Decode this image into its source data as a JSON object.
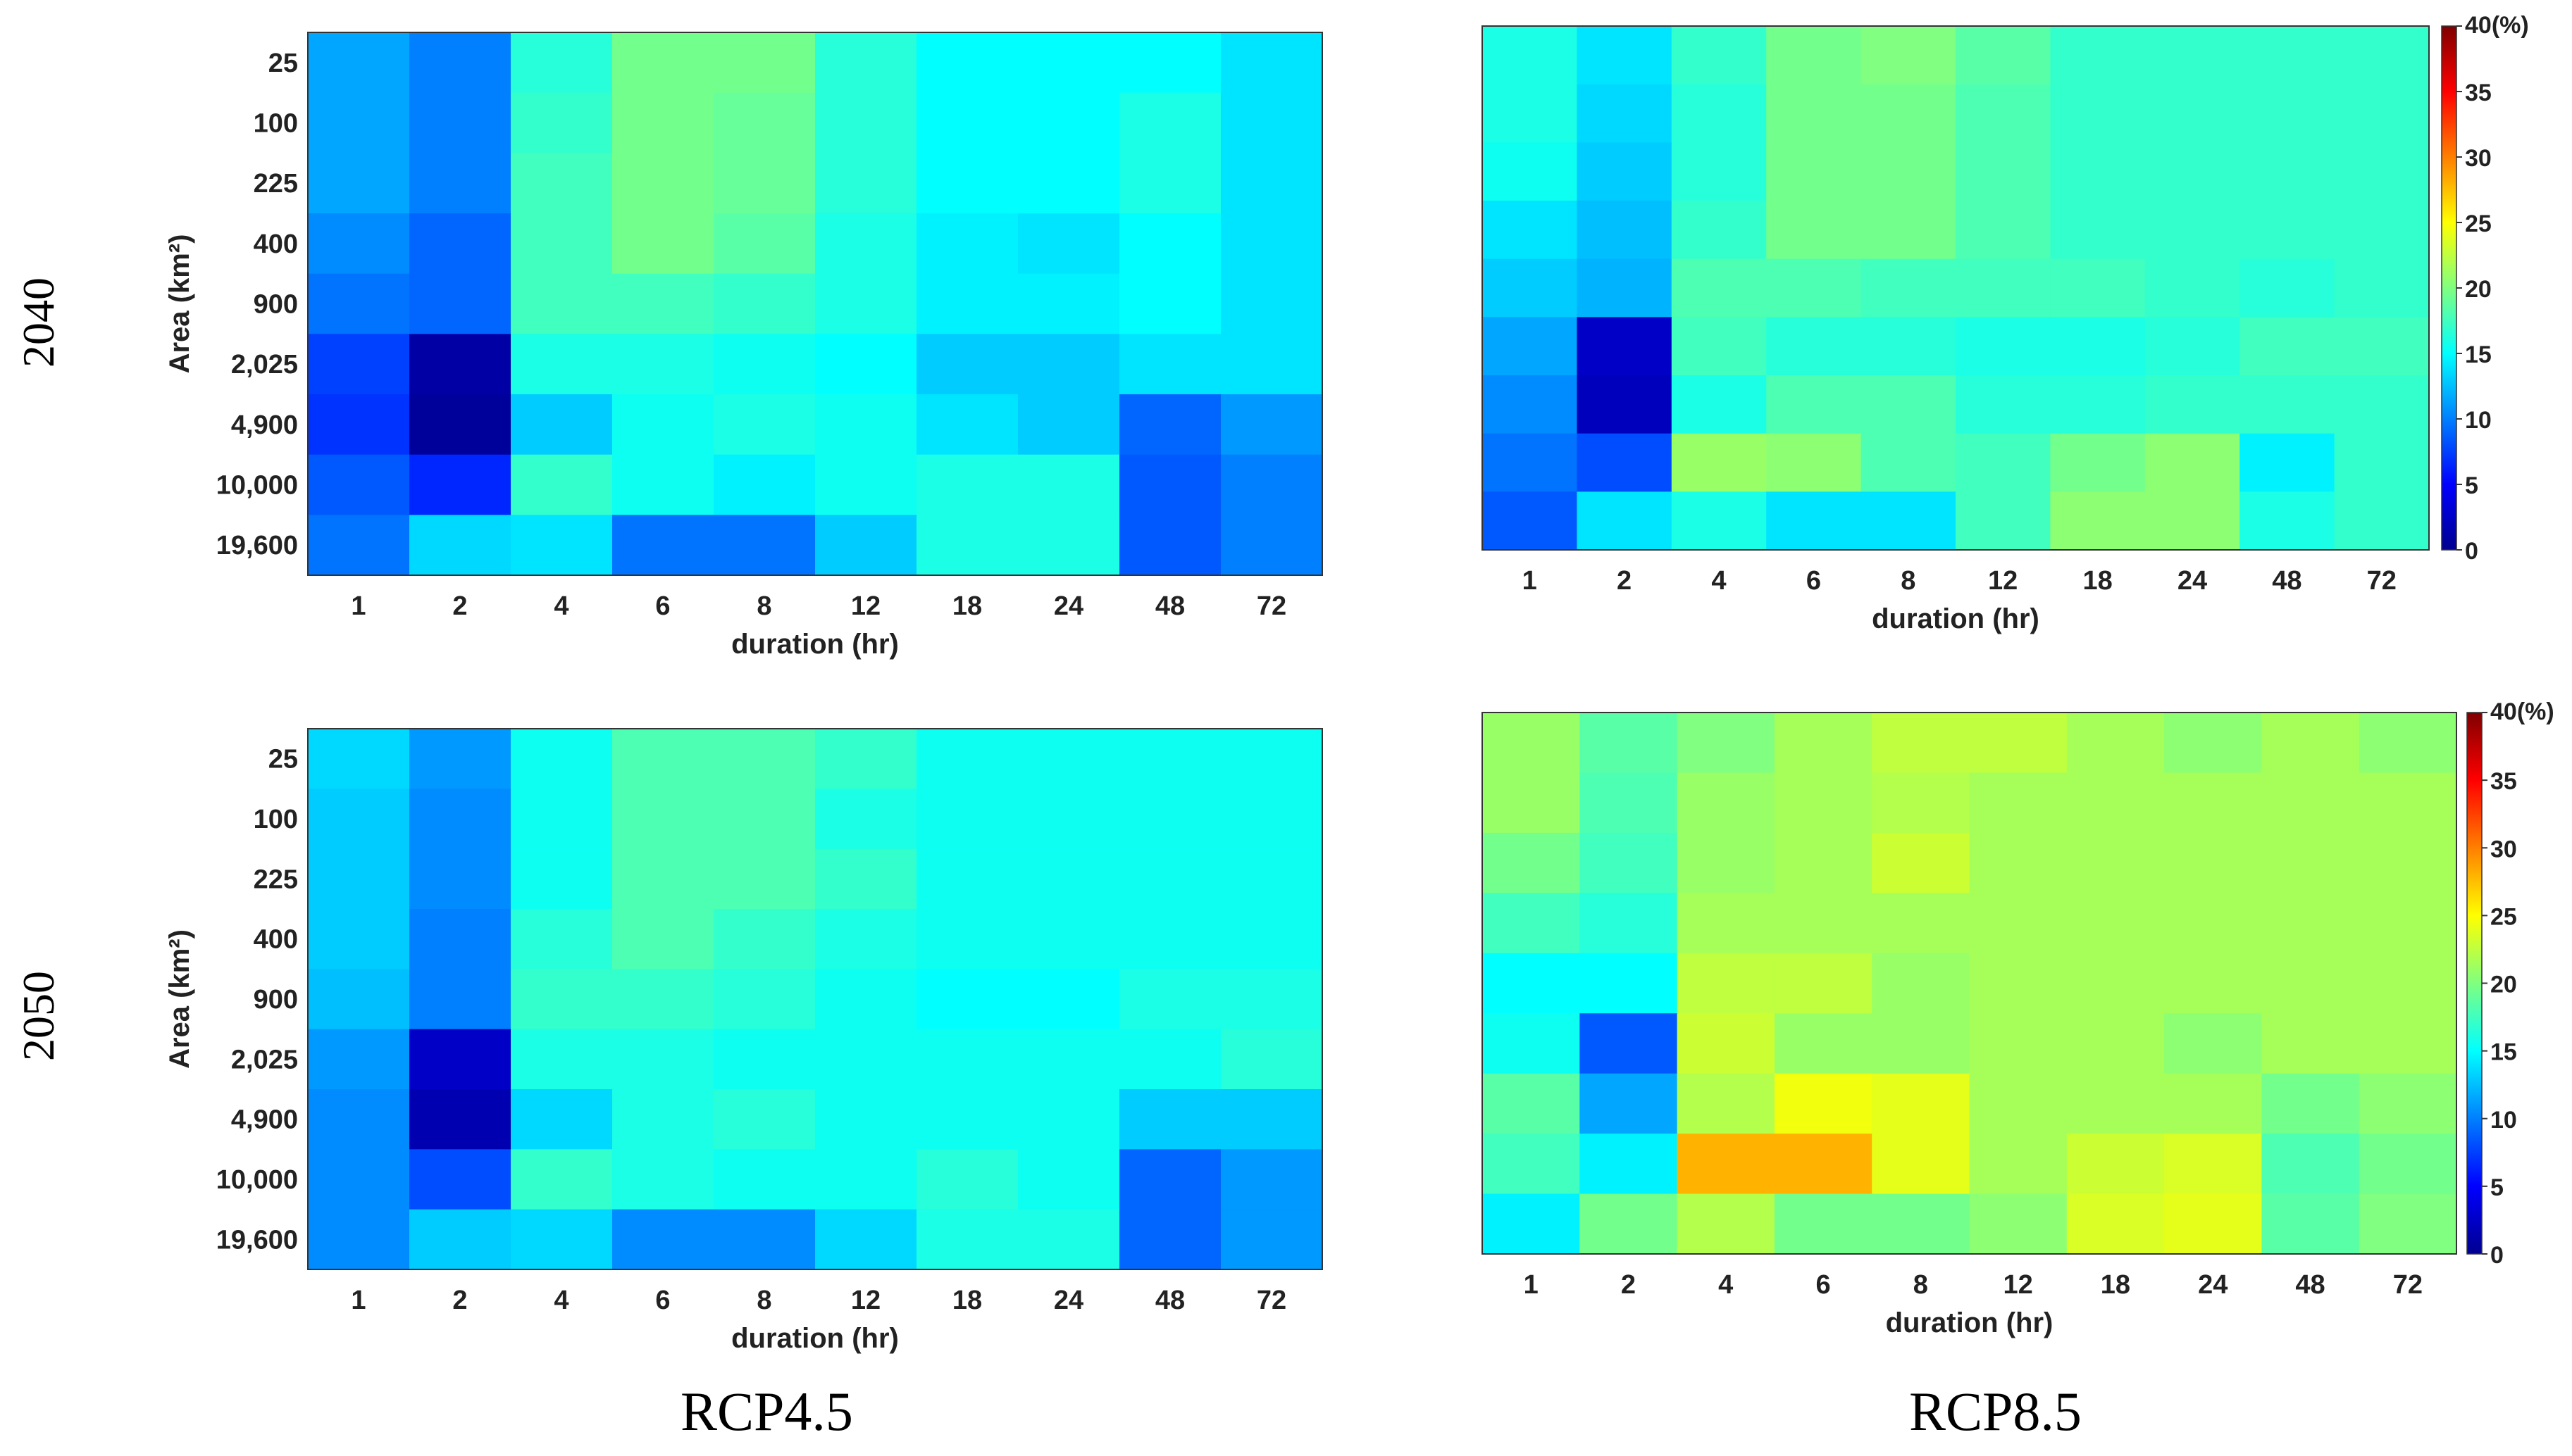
{
  "row_labels": [
    "2040",
    "2050"
  ],
  "column_labels": [
    "RCP4.5",
    "RCP8.5"
  ],
  "colormap": {
    "name": "jet",
    "range": [
      0,
      40
    ],
    "stops": [
      "#00008f",
      "#0000ff",
      "#00ffff",
      "#ffff00",
      "#ff0000",
      "#800000"
    ]
  },
  "chart_data": [
    {
      "type": "heatmap",
      "id": "rcp45-2040",
      "title": "",
      "xlabel": "duration (hr)",
      "ylabel": "Area (km²)",
      "x_categories": [
        "1",
        "2",
        "4",
        "6",
        "8",
        "12",
        "18",
        "24",
        "48",
        "72"
      ],
      "y_categories": [
        "25",
        "100",
        "225",
        "400",
        "900",
        "2,025",
        "4,900",
        "10,000",
        "19,600"
      ],
      "show_ytick_labels": true,
      "colorbar": null,
      "values": [
        [
          11.5,
          10,
          16.5,
          19.5,
          19.5,
          16.5,
          15,
          15,
          15,
          14
        ],
        [
          11.5,
          10,
          17,
          19.5,
          19,
          16.5,
          15,
          15,
          16,
          14
        ],
        [
          11.5,
          10,
          17.5,
          19.5,
          19,
          16.5,
          15,
          15,
          16,
          14
        ],
        [
          10.5,
          9,
          17.5,
          19.5,
          18.5,
          16,
          14.5,
          14,
          15,
          14
        ],
        [
          9.5,
          9,
          17.5,
          17.5,
          17,
          16,
          14.5,
          14.5,
          15,
          14
        ],
        [
          7.5,
          1,
          16,
          16,
          15.5,
          15,
          13,
          13,
          14,
          14
        ],
        [
          7,
          0.5,
          13,
          15.5,
          16,
          15.5,
          14,
          13,
          9,
          11
        ],
        [
          8.5,
          6.5,
          17,
          15.5,
          14.5,
          15.5,
          16,
          16,
          8.5,
          10
        ],
        [
          9.5,
          13.5,
          14,
          9.5,
          9.5,
          13,
          16,
          16,
          8.5,
          10
        ]
      ]
    },
    {
      "type": "heatmap",
      "id": "rcp85-2040",
      "title": "",
      "xlabel": "duration (hr)",
      "ylabel": "",
      "x_categories": [
        "1",
        "2",
        "4",
        "6",
        "8",
        "12",
        "18",
        "24",
        "48",
        "72"
      ],
      "y_categories": [
        "25",
        "100",
        "225",
        "400",
        "900",
        "2,025",
        "4,900",
        "10,000",
        "19,600"
      ],
      "show_ytick_labels": false,
      "colorbar": {
        "ticks": [
          "0",
          "5",
          "10",
          "15",
          "20",
          "25",
          "30",
          "35",
          "40"
        ],
        "top_label": "40(%)"
      },
      "values": [
        [
          16,
          14,
          17,
          19.5,
          20,
          18.5,
          17,
          17,
          17,
          17
        ],
        [
          16,
          13.5,
          16.5,
          19.5,
          19.5,
          18,
          17,
          17,
          17,
          17
        ],
        [
          15.5,
          13,
          16.5,
          19.5,
          19.5,
          18,
          17,
          17,
          17,
          17
        ],
        [
          14,
          12.5,
          17,
          19.5,
          19.5,
          18,
          17,
          17,
          17,
          17
        ],
        [
          13,
          12,
          18,
          18,
          17.5,
          17.5,
          17.5,
          17,
          16.5,
          17
        ],
        [
          11.5,
          2.5,
          17.5,
          16.5,
          16.5,
          16,
          16,
          16.5,
          17.5,
          17.5
        ],
        [
          10.5,
          2,
          16,
          18,
          18,
          16.5,
          16.5,
          17,
          17,
          17
        ],
        [
          9.5,
          8,
          21,
          20.5,
          18,
          17.5,
          19.5,
          20.5,
          14.5,
          17
        ],
        [
          8.5,
          14,
          16,
          14,
          14,
          17.5,
          20.5,
          20.5,
          16,
          17
        ]
      ]
    },
    {
      "type": "heatmap",
      "id": "rcp45-2050",
      "title": "",
      "xlabel": "duration (hr)",
      "ylabel": "Area (km²)",
      "x_categories": [
        "1",
        "2",
        "4",
        "6",
        "8",
        "12",
        "18",
        "24",
        "48",
        "72"
      ],
      "y_categories": [
        "25",
        "100",
        "225",
        "400",
        "900",
        "2,025",
        "4,900",
        "10,000",
        "19,600"
      ],
      "show_ytick_labels": true,
      "colorbar": null,
      "values": [
        [
          13.5,
          11,
          15.5,
          18,
          18,
          17,
          15.5,
          15.5,
          15.5,
          15.5
        ],
        [
          13,
          10.5,
          15.5,
          18,
          18,
          16,
          15.5,
          15.5,
          15.5,
          15.5
        ],
        [
          13,
          10.5,
          15.5,
          18,
          18,
          17,
          15.5,
          15.5,
          15.5,
          15.5
        ],
        [
          13,
          10,
          16.5,
          18,
          17,
          16,
          15.5,
          15.5,
          15.5,
          15.5
        ],
        [
          12.5,
          10,
          17,
          17,
          16.5,
          15.5,
          15,
          15,
          16,
          16
        ],
        [
          11,
          2.5,
          16,
          16,
          15.5,
          15.5,
          15.5,
          15.5,
          15.5,
          16.5
        ],
        [
          10.5,
          1.5,
          13.5,
          16,
          16.5,
          15.5,
          15.5,
          15.5,
          13,
          13
        ],
        [
          10.5,
          8,
          17,
          16,
          15.5,
          15.5,
          16.5,
          15.5,
          9,
          11
        ],
        [
          10.5,
          13,
          13.5,
          10.5,
          10.5,
          13.5,
          16,
          16,
          9,
          11
        ]
      ]
    },
    {
      "type": "heatmap",
      "id": "rcp85-2050",
      "title": "",
      "xlabel": "duration (hr)",
      "ylabel": "",
      "x_categories": [
        "1",
        "2",
        "4",
        "6",
        "8",
        "12",
        "18",
        "24",
        "48",
        "72"
      ],
      "y_categories": [
        "25",
        "100",
        "225",
        "400",
        "900",
        "2,025",
        "4,900",
        "10,000",
        "19,600"
      ],
      "show_ytick_labels": false,
      "colorbar": {
        "ticks": [
          "0",
          "5",
          "10",
          "15",
          "20",
          "25",
          "30",
          "35",
          "40"
        ],
        "top_label": "40(%)"
      },
      "values": [
        [
          21,
          18.5,
          20,
          21.5,
          22.5,
          22.5,
          21.5,
          20.5,
          21.5,
          20.5
        ],
        [
          21,
          18,
          21,
          21.5,
          22,
          21.5,
          21.5,
          21.5,
          21.5,
          21.5
        ],
        [
          19.5,
          17.5,
          21,
          21.5,
          23,
          21.5,
          21.5,
          21.5,
          21.5,
          21.5
        ],
        [
          17.5,
          16.5,
          21.5,
          21.5,
          21.5,
          21.5,
          21.5,
          21.5,
          21.5,
          21.5
        ],
        [
          15,
          15,
          22.5,
          22.5,
          21,
          21.5,
          21.5,
          21.5,
          21.5,
          21.5
        ],
        [
          15.5,
          8.5,
          23,
          21,
          21,
          21.5,
          21.5,
          20.5,
          21.5,
          21.5
        ],
        [
          18.5,
          11.5,
          22,
          24.5,
          24,
          21.5,
          21.5,
          21.5,
          19.5,
          20.5
        ],
        [
          17.5,
          14.5,
          28,
          28,
          24,
          21.5,
          23,
          23.5,
          18,
          19.5
        ],
        [
          14.5,
          19.5,
          22,
          19.5,
          19.5,
          20.5,
          23.5,
          24,
          18.5,
          20
        ]
      ]
    }
  ]
}
